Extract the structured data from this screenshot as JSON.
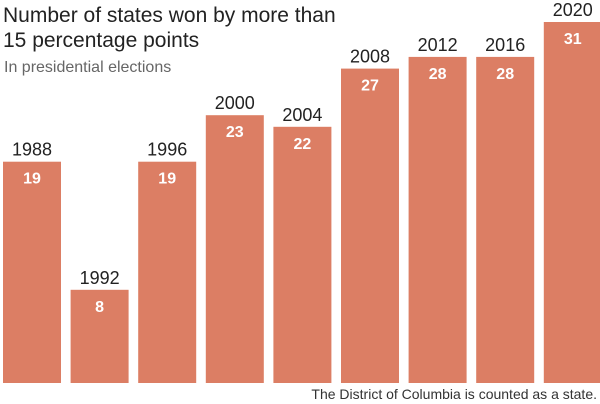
{
  "chart_data": {
    "type": "bar",
    "title_lines": [
      "Number of states won by more than",
      "15 percentage points"
    ],
    "subtitle": "In presidential elections",
    "note": "The District of Columbia is counted as a state.",
    "categories": [
      "1988",
      "1992",
      "1996",
      "2000",
      "2004",
      "2008",
      "2012",
      "2016",
      "2020"
    ],
    "values": [
      19,
      8,
      19,
      23,
      22,
      27,
      28,
      28,
      31
    ],
    "ylim": [
      0,
      31
    ],
    "grid": false,
    "bar_color": "#dc7e64",
    "value_label_color": "#ffffff"
  }
}
